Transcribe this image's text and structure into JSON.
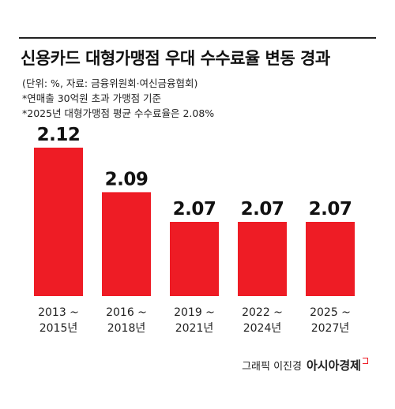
{
  "header": {
    "title": "신용카드 대형가맹점 우대 수수료율 변동 경과",
    "notes": [
      "(단위: %, 자료: 금융위원회·여신금융협회)",
      "*연매출 30억원 초과 가맹점 기준",
      "*2025년 대형가맹점 평균 수수료율은 2.08%"
    ]
  },
  "chart_data": {
    "type": "bar",
    "categories": [
      [
        "2013 ~",
        "2015년"
      ],
      [
        "2016 ~",
        "2018년"
      ],
      [
        "2019 ~",
        "2021년"
      ],
      [
        "2022 ~",
        "2024년"
      ],
      [
        "2025 ~",
        "2027년"
      ]
    ],
    "values": [
      2.12,
      2.09,
      2.07,
      2.07,
      2.07
    ],
    "value_labels": [
      "2.12",
      "2.09",
      "2.07",
      "2.07",
      "2.07"
    ],
    "bar_color": "#ee1c25",
    "grid": false
  },
  "credit": {
    "byline": "그래픽 이진경",
    "brand": "아시아경제"
  }
}
